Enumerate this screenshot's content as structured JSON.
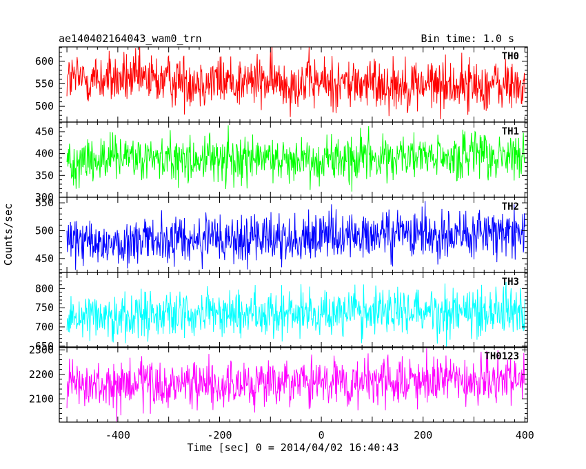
{
  "header": {
    "title": "ae140402164043_wam0_trn",
    "bin_time": "Bin time: 1.0 s"
  },
  "axes": {
    "ylabel": "Counts/sec",
    "xlabel": "Time [sec] 0 = 2014/04/02 16:40:43"
  },
  "chart_data": [
    {
      "type": "line",
      "name": "TH0",
      "color": "#ff0000",
      "xlim": [
        -515,
        405
      ],
      "ylim": [
        465,
        632
      ],
      "yticks": [
        500,
        550,
        600
      ],
      "x_range": [
        -500,
        400
      ],
      "bin_time_s": 1.0,
      "mean_start": 562,
      "mean_end": 545,
      "spread": 42
    },
    {
      "type": "line",
      "name": "TH1",
      "color": "#00ff00",
      "xlim": [
        -515,
        405
      ],
      "ylim": [
        300,
        472
      ],
      "yticks": [
        300,
        350,
        400,
        450
      ],
      "x_range": [
        -500,
        400
      ],
      "bin_time_s": 1.0,
      "mean_start": 385,
      "mean_end": 392,
      "spread": 40
    },
    {
      "type": "line",
      "name": "TH2",
      "color": "#0000ff",
      "xlim": [
        -515,
        405
      ],
      "ylim": [
        425,
        560
      ],
      "yticks": [
        450,
        500,
        550
      ],
      "x_range": [
        -500,
        400
      ],
      "bin_time_s": 1.0,
      "mean_start": 477,
      "mean_end": 497,
      "spread": 32
    },
    {
      "type": "line",
      "name": "TH3",
      "color": "#00ffff",
      "xlim": [
        -515,
        405
      ],
      "ylim": [
        646,
        842
      ],
      "yticks": [
        650,
        700,
        750,
        800
      ],
      "x_range": [
        -500,
        400
      ],
      "bin_time_s": 1.0,
      "mean_start": 730,
      "mean_end": 745,
      "spread": 45
    },
    {
      "type": "line",
      "name": "TH0123",
      "color": "#ff00ff",
      "xlim": [
        -515,
        405
      ],
      "ylim": [
        2005,
        2312
      ],
      "yticks": [
        2100,
        2200,
        2300
      ],
      "x_range": [
        -500,
        400
      ],
      "xticks": [
        -400,
        -200,
        0,
        200,
        400
      ],
      "bin_time_s": 1.0,
      "mean_start": 2148,
      "mean_end": 2175,
      "spread": 70
    }
  ]
}
